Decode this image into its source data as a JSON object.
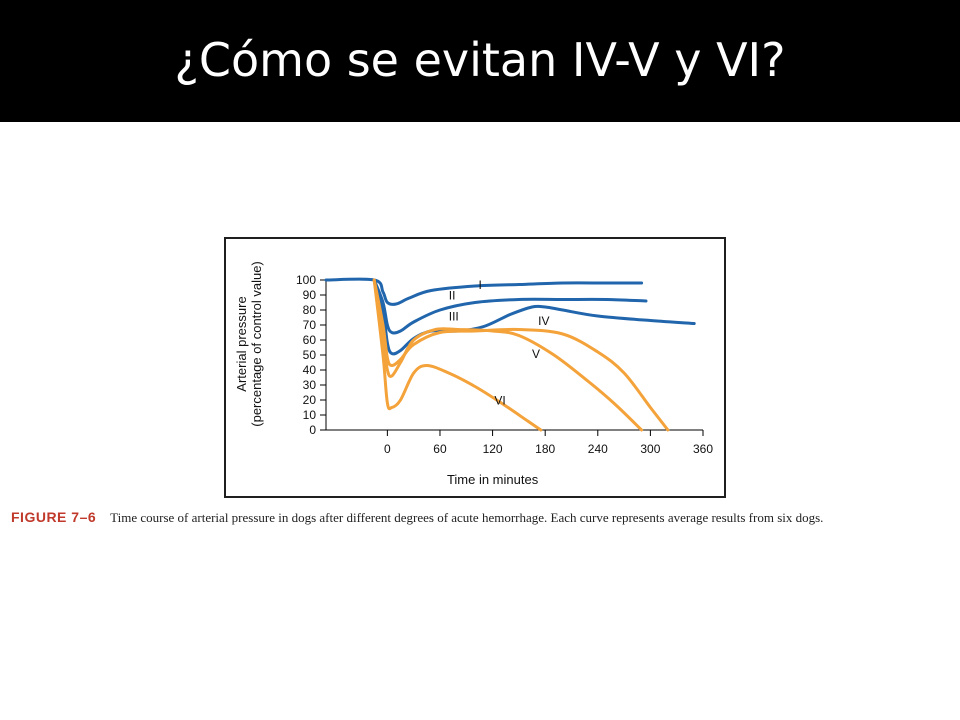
{
  "slide": {
    "title": "¿Cómo se evitan IV-V y VI?"
  },
  "caption": {
    "label": "FIGURE 7–6",
    "text": "Time course of arterial pressure in dogs after different degrees of acute hemorrhage. Each curve represents average results from six dogs."
  },
  "colors": {
    "blue": "#2166ac",
    "orange": "#f4a23a",
    "caption_label": "#c0392b",
    "title_bar": "#000000"
  },
  "chart_data": {
    "type": "line",
    "xlabel": "Time in minutes",
    "ylabel": "Arterial pressure",
    "ylabel2": "(percentage of control value)",
    "xlim": [
      -70,
      360
    ],
    "ylim": [
      0,
      100
    ],
    "xticks": [
      0,
      60,
      120,
      180,
      240,
      300,
      360
    ],
    "yticks": [
      0,
      10,
      20,
      30,
      40,
      50,
      60,
      70,
      80,
      90,
      100
    ],
    "grid": false,
    "series": [
      {
        "name": "I",
        "color": "blue",
        "x": [
          -70,
          -15,
          -5,
          0,
          10,
          25,
          50,
          100,
          150,
          200,
          250,
          290
        ],
        "y": [
          100,
          100,
          92,
          85,
          84,
          88,
          93,
          96,
          97,
          98,
          98,
          98
        ]
      },
      {
        "name": "II",
        "color": "blue",
        "x": [
          -15,
          -5,
          0,
          5,
          15,
          30,
          60,
          100,
          150,
          200,
          250,
          295
        ],
        "y": [
          100,
          85,
          70,
          65,
          66,
          72,
          80,
          85,
          87,
          87,
          87,
          86
        ]
      },
      {
        "name": "III",
        "color": "blue",
        "x": [
          -15,
          -5,
          0,
          5,
          15,
          30,
          50,
          80,
          110,
          140,
          165,
          180,
          200,
          240,
          300,
          350
        ],
        "y": [
          100,
          80,
          58,
          51,
          53,
          61,
          66,
          66,
          69,
          77,
          82,
          82,
          80,
          76,
          73,
          71
        ]
      },
      {
        "name": "IV",
        "color": "orange",
        "x": [
          -15,
          -5,
          0,
          5,
          15,
          30,
          60,
          100,
          150,
          200,
          240,
          270,
          300,
          320
        ],
        "y": [
          100,
          70,
          48,
          43,
          47,
          57,
          65,
          66,
          67,
          64,
          52,
          38,
          15,
          0
        ]
      },
      {
        "name": "V",
        "color": "orange",
        "x": [
          -15,
          -5,
          0,
          5,
          15,
          30,
          55,
          80,
          120,
          150,
          190,
          230,
          260,
          290
        ],
        "y": [
          100,
          60,
          40,
          36,
          45,
          60,
          67,
          67,
          66,
          63,
          50,
          32,
          17,
          0
        ]
      },
      {
        "name": "VI",
        "color": "orange",
        "x": [
          -15,
          -5,
          0,
          5,
          15,
          30,
          45,
          70,
          100,
          130,
          160,
          175
        ],
        "y": [
          100,
          50,
          18,
          15,
          20,
          38,
          43,
          38,
          29,
          18,
          6,
          0
        ]
      }
    ]
  }
}
